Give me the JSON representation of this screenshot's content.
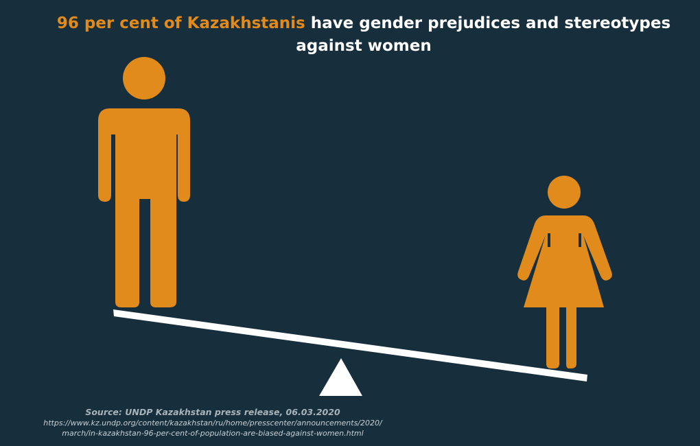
{
  "headline": {
    "highlight": "96 per cent of Kazakhstanis",
    "rest": " have gender prejudices and stereotypes",
    "line2": "against women"
  },
  "source": {
    "title": "Source: UNDP Kazakhstan press release, 06.03.2020",
    "url_line1": "https://www.kz.undp.org/content/kazakhstan/ru/home/presscenter/announcements/2020/",
    "url_line2": "march/in-kazakhstan-96-per-cent-of-population-are-biased-against-women.html"
  },
  "icons": {
    "man": "man-figure-icon",
    "woman": "woman-figure-icon",
    "fulcrum": "triangle-fulcrum-icon"
  },
  "colors": {
    "background": "#172e3c",
    "accent": "#e08b1b",
    "text": "#ffffff",
    "beam": "#ffffff"
  }
}
